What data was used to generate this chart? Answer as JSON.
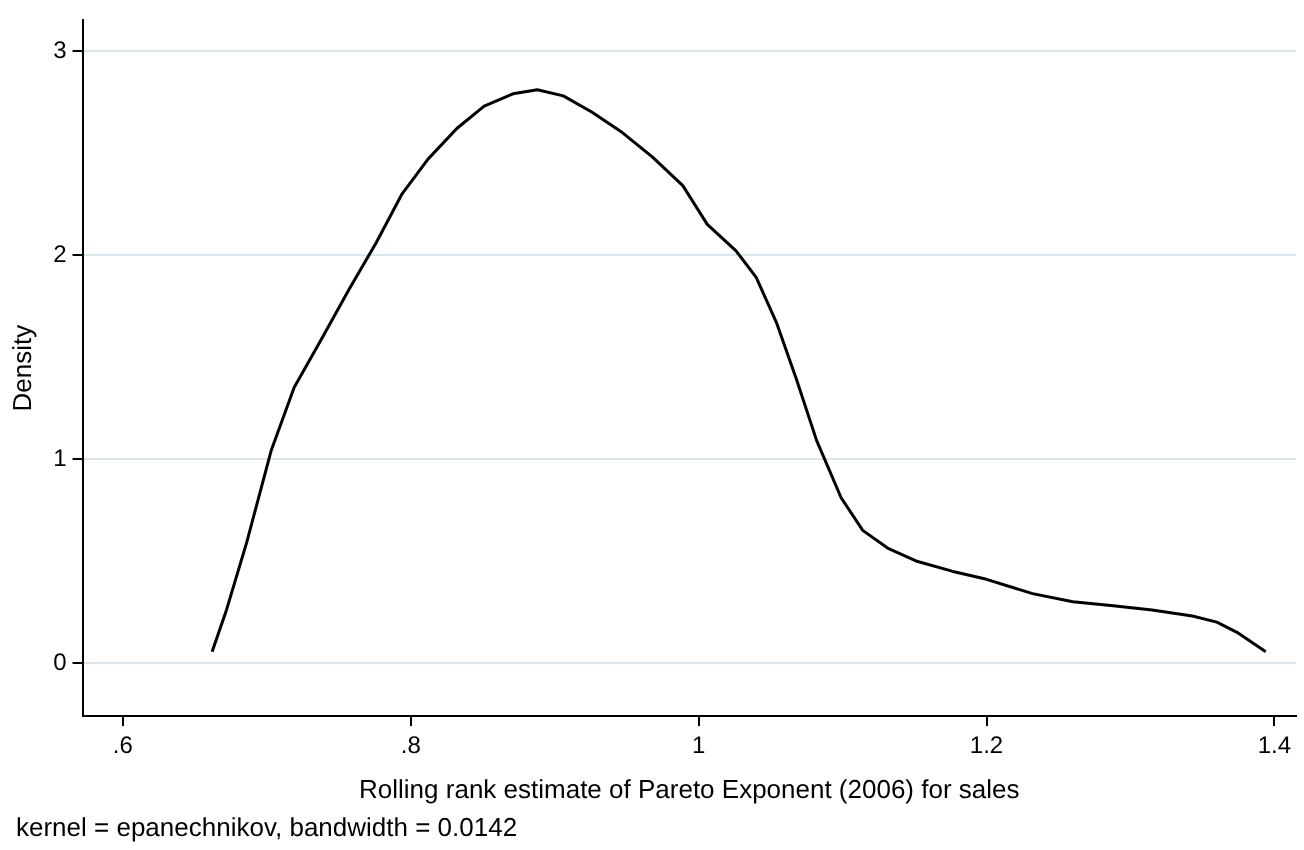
{
  "chart_data": {
    "type": "line",
    "xlabel": "Rolling rank estimate of Pareto Exponent (2006) for sales",
    "ylabel": "Density",
    "annotations": [
      "kernel = epanechnikov, bandwidth = 0.0142"
    ],
    "xlim": [
      0.572,
      1.415
    ],
    "ylim": [
      -0.26,
      3.15
    ],
    "xticks": [
      {
        "value": 0.6,
        "label": ".6"
      },
      {
        "value": 0.8,
        "label": ".8"
      },
      1,
      1.2,
      1.4
    ],
    "yticks": [
      0,
      1,
      2,
      3
    ],
    "grid": "y",
    "legend": false,
    "marker": "none",
    "line_style": "solid",
    "series": [
      {
        "color": "#000000",
        "x": [
          0.662,
          0.672,
          0.686,
          0.703,
          0.719,
          0.739,
          0.757,
          0.776,
          0.794,
          0.812,
          0.832,
          0.851,
          0.871,
          0.888,
          0.906,
          0.926,
          0.947,
          0.968,
          0.989,
          1.006,
          1.026,
          1.04,
          1.054,
          1.068,
          1.082,
          1.099,
          1.114,
          1.132,
          1.151,
          1.176,
          1.2,
          1.232,
          1.26,
          1.288,
          1.315,
          1.343,
          1.36,
          1.374,
          1.394
        ],
        "values": [
          0.055,
          0.26,
          0.59,
          1.04,
          1.35,
          1.6,
          1.83,
          2.06,
          2.3,
          2.47,
          2.62,
          2.73,
          2.79,
          2.81,
          2.78,
          2.7,
          2.6,
          2.48,
          2.34,
          2.15,
          2.02,
          1.89,
          1.67,
          1.39,
          1.09,
          0.81,
          0.65,
          0.56,
          0.5,
          0.45,
          0.41,
          0.34,
          0.3,
          0.28,
          0.26,
          0.23,
          0.2,
          0.15,
          0.055
        ]
      }
    ]
  }
}
